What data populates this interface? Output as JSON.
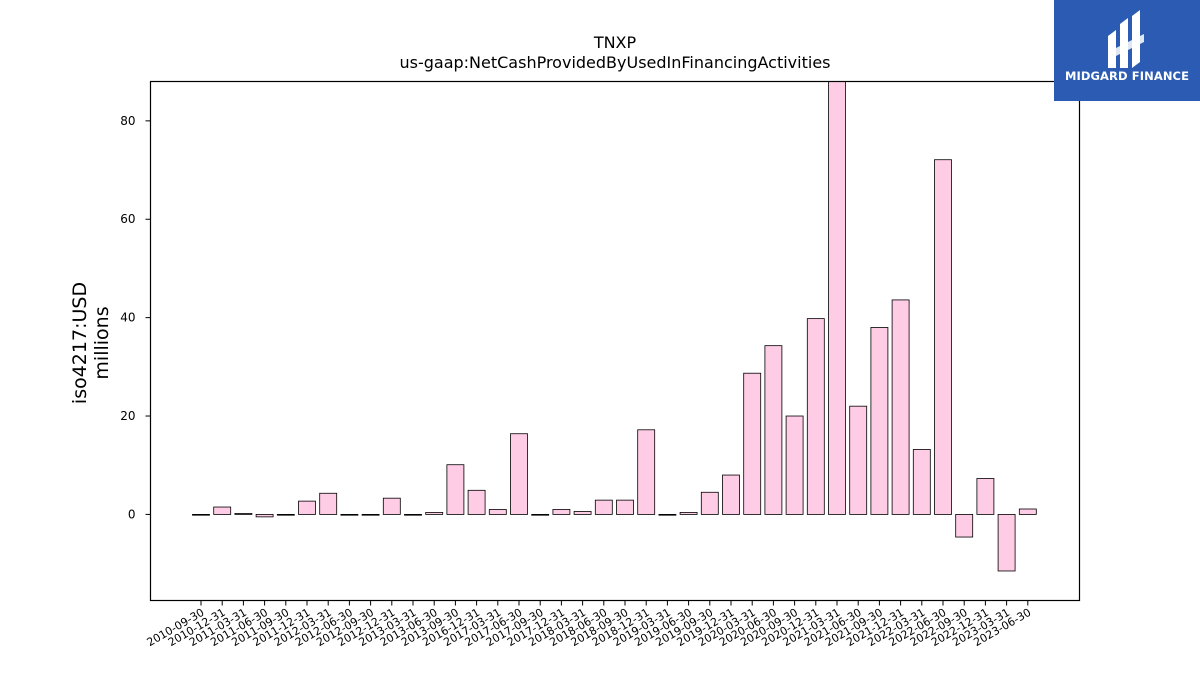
{
  "chart_data": {
    "type": "bar",
    "title": "TNXP",
    "subtitle": "us-gaap:NetCashProvidedByUsedInFinancingActivities",
    "ylabel": "iso4217:USD",
    "ylabel2": "millions",
    "xlabel": "",
    "ylim": [
      -17.5,
      88
    ],
    "yticks": [
      0,
      20,
      40,
      60,
      80
    ],
    "grid": false,
    "bar_color": "#ffcce6",
    "edge_color": "#000000",
    "categories": [
      "2010-09-30",
      "2010-12-31",
      "2011-03-31",
      "2011-06-30",
      "2011-09-30",
      "2011-12-31",
      "2012-03-31",
      "2012-06-30",
      "2012-09-30",
      "2012-12-31",
      "2013-03-31",
      "2013-06-30",
      "2013-09-30",
      "2016-12-31",
      "2017-03-31",
      "2017-06-30",
      "2017-09-30",
      "2017-12-31",
      "2018-03-31",
      "2018-06-30",
      "2018-09-30",
      "2018-12-31",
      "2019-03-31",
      "2019-06-30",
      "2019-09-30",
      "2019-12-31",
      "2020-03-31",
      "2020-06-30",
      "2020-09-30",
      "2020-12-31",
      "2021-03-31",
      "2021-06-30",
      "2021-09-30",
      "2021-12-31",
      "2022-03-31",
      "2022-06-30",
      "2022-09-30",
      "2022-12-31",
      "2023-03-31",
      "2023-06-30"
    ],
    "values": [
      0,
      1.5,
      0.2,
      -0.5,
      0,
      2.7,
      4.3,
      0,
      0,
      3.3,
      0,
      0.4,
      10.1,
      4.9,
      1.0,
      16.4,
      0,
      1.0,
      0.6,
      2.9,
      2.9,
      17.2,
      0,
      0.4,
      4.5,
      8.0,
      28.7,
      34.3,
      20.0,
      39.8,
      88.5,
      22.0,
      38.0,
      43.6,
      13.2,
      72.1,
      -4.6,
      7.3,
      -11.5,
      1.1
    ]
  },
  "logo": {
    "text": "MIDGARD FINANCE",
    "color": "#2b5bb2"
  }
}
